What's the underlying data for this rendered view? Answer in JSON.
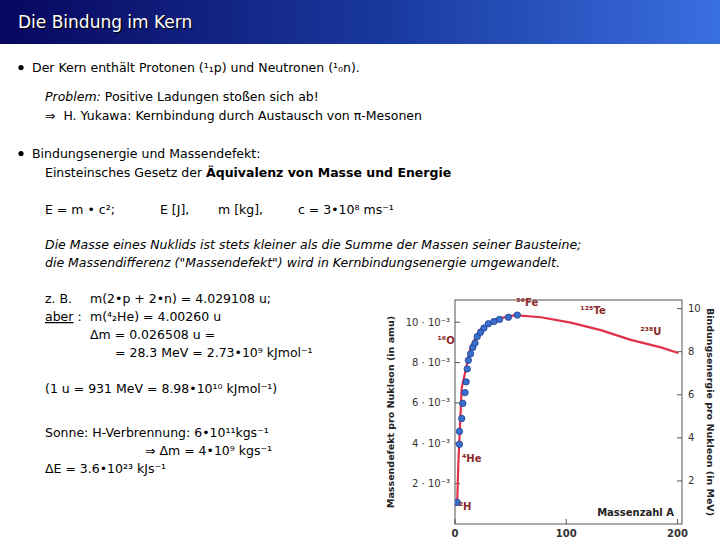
{
  "title": "Die Bindung im Kern",
  "items": [
    {
      "segments": [
        {
          "text": "Der Kern enthält Protonen (¹₁p) und Neutronen (¹₀n)."
        }
      ]
    },
    {
      "segments": [
        {
          "text": "Problem:",
          "style": "italic"
        },
        {
          "text": " Positive Ladungen stoßen sich ab!"
        }
      ]
    },
    {
      "segments": [
        {
          "text": "⇒  H. Yukawa: Kernbindung durch Austausch von π-Mesonen"
        }
      ]
    },
    {
      "segments": [
        {
          "text": "Bindungsenergie und Massendefekt:"
        }
      ]
    },
    {
      "segments": [
        {
          "text": "Einsteinsches Gesetz der "
        },
        {
          "text": "Äquivalenz von Masse und Energie",
          "style": "bold"
        }
      ]
    },
    {
      "segments": [
        {
          "text": "E = m • c²;"
        }
      ]
    },
    {
      "segments": [
        {
          "text": "E [J],"
        }
      ]
    },
    {
      "segments": [
        {
          "text": "m [kg],"
        }
      ]
    },
    {
      "segments": [
        {
          "text": "c = 3•10⁸ ms⁻¹"
        }
      ]
    },
    {
      "segments": [
        {
          "text": "Die Masse eines Nuklids ist stets kleiner als die Summe der Massen seiner Bausteine;",
          "style": "italic"
        }
      ]
    },
    {
      "segments": [
        {
          "text": "die Massendifferenz (\"Massendefekt\") wird in Kernbindungsenergie umgewandelt.",
          "style": "italic"
        }
      ]
    },
    {
      "segments": [
        {
          "text": "z. B."
        }
      ]
    },
    {
      "segments": [
        {
          "text": "m(2•p + 2•n) = 4.029108 u;"
        }
      ]
    },
    {
      "segments": [
        {
          "text": "aber",
          "style": "underline"
        },
        {
          "text": " :"
        }
      ]
    },
    {
      "segments": [
        {
          "text": "m(⁴₂He) = 4.00260 u"
        }
      ]
    },
    {
      "segments": [
        {
          "text": "Δm = 0.026508 u ="
        }
      ]
    },
    {
      "segments": [
        {
          "text": "= 28.3 MeV = 2.73•10⁹ kJmol⁻¹"
        }
      ]
    },
    {
      "segments": [
        {
          "text": "(1 u = 931 MeV = 8.98•10¹⁰ kJmol⁻¹)"
        }
      ]
    },
    {
      "segments": [
        {
          "text": "Sonne: H-Verbrennung: 6•10¹¹kgs⁻¹"
        }
      ]
    },
    {
      "segments": [
        {
          "text": "⇒ Δm = 4•10⁹ kgs⁻¹"
        }
      ]
    },
    {
      "segments": [
        {
          "text": "ΔE = 3.6•10²³ kJs⁻¹"
        }
      ]
    }
  ],
  "chart_data": {
    "type": "line",
    "x_label": "Massenzahl A",
    "y_label": "Massendefekt pro Nukleon (in amu)",
    "y2_label": "Bindungsenergie pro Nukleon (in MeV)",
    "xlim": [
      0,
      204
    ],
    "xticks": [
      0,
      100,
      200
    ],
    "ylim": [
      0,
      0.0111
    ],
    "yticks": [
      {
        "value": 0.002,
        "label": "2 · 10⁻³"
      },
      {
        "value": 0.004,
        "label": "4 · 10⁻³"
      },
      {
        "value": 0.006,
        "label": "6 · 10⁻³"
      },
      {
        "value": 0.008,
        "label": "8 · 10⁻³"
      },
      {
        "value": 0.01,
        "label": "10 · 10⁻³"
      }
    ],
    "y2lim": [
      0,
      10.4
    ],
    "y2ticks": [
      2,
      4,
      6,
      8,
      10
    ],
    "series": [
      {
        "type": "line",
        "color": "#e0304a",
        "line_style": "solid",
        "axis": "y2",
        "x": [
          2,
          3,
          6,
          14,
          22,
          36,
          54,
          77,
          104,
          131,
          158,
          185,
          200
        ],
        "values": [
          1.1,
          2.8,
          6.3,
          8.2,
          9.0,
          9.5,
          9.7,
          9.6,
          9.35,
          9.0,
          8.55,
          8.2,
          7.95
        ]
      },
      {
        "type": "scatter",
        "color": "#3a6fd0",
        "marker": "circle",
        "axis": "y2",
        "x": [
          2,
          4,
          4,
          6,
          7,
          9,
          10,
          11,
          12,
          14,
          16,
          18,
          20,
          23,
          26,
          30,
          35,
          40,
          48,
          56
        ],
        "values": [
          1.0,
          3.7,
          4.3,
          4.9,
          5.6,
          6.1,
          6.6,
          7.2,
          7.6,
          7.9,
          8.2,
          8.4,
          8.7,
          8.9,
          9.1,
          9.3,
          9.4,
          9.5,
          9.6,
          9.7
        ]
      }
    ],
    "annotations": [
      {
        "text": "²H",
        "x": 9,
        "y": 0.8,
        "axis": "y2"
      },
      {
        "text": "⁴He",
        "x": 15,
        "y": 3.0,
        "axis": "y2"
      },
      {
        "text": "¹⁶O",
        "x": -8,
        "y": 8.5,
        "axis": "y2"
      },
      {
        "text": "⁵⁶Fe",
        "x": 65,
        "y": 10.25,
        "axis": "y2"
      },
      {
        "text": "¹²⁵Te",
        "x": 124,
        "y": 9.9,
        "axis": "y2"
      },
      {
        "text": "²³⁸U",
        "x": 176,
        "y": 8.9,
        "axis": "y2"
      }
    ]
  }
}
